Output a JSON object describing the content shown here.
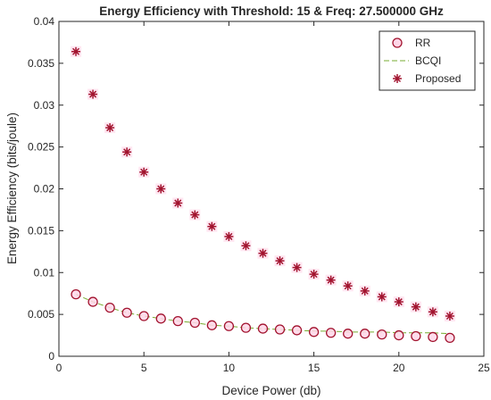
{
  "chart_data": {
    "type": "scatter",
    "title": "Energy Efficiency with Threshold: 15 & Freq: 27.500000 GHz",
    "xlabel": "Device Power (db)",
    "ylabel": "Energy Efficiency (bits/joule)",
    "xlim": [
      0,
      25
    ],
    "ylim": [
      0,
      0.04
    ],
    "xticks": [
      "0",
      "5",
      "10",
      "15",
      "20",
      "25"
    ],
    "yticks": [
      "0",
      "0.005",
      "0.01",
      "0.015",
      "0.02",
      "0.025",
      "0.03",
      "0.035",
      "0.04"
    ],
    "grid": false,
    "legend_position": "top-right",
    "x": [
      1,
      2,
      3,
      4,
      5,
      6,
      7,
      8,
      9,
      10,
      11,
      12,
      13,
      14,
      15,
      16,
      17,
      18,
      19,
      20,
      21,
      22,
      23
    ],
    "series": [
      {
        "name": "RR",
        "marker": "circle",
        "color": "#a2142f",
        "values": [
          0.0074,
          0.0065,
          0.0058,
          0.0052,
          0.0048,
          0.0045,
          0.0042,
          0.004,
          0.0037,
          0.0036,
          0.0034,
          0.0033,
          0.0032,
          0.0031,
          0.0029,
          0.0028,
          0.0027,
          0.0027,
          0.0026,
          0.0025,
          0.0024,
          0.0023,
          0.0022
        ]
      },
      {
        "name": "BCQI",
        "marker": "dash-line",
        "color": "#77ac30",
        "values": [
          0.0074,
          0.0065,
          0.0058,
          0.0052,
          0.0048,
          0.0045,
          0.0042,
          0.004,
          0.0037,
          0.0036,
          0.0034,
          0.0033,
          0.0032,
          0.0031,
          0.003,
          0.003,
          0.0029,
          0.0029,
          0.0029,
          0.0028,
          0.0028,
          0.0028,
          0.0027
        ]
      },
      {
        "name": "Proposed",
        "marker": "asterisk",
        "color": "#a2142f",
        "values": [
          0.0364,
          0.0313,
          0.0273,
          0.0244,
          0.022,
          0.02,
          0.0183,
          0.0169,
          0.0155,
          0.0143,
          0.0132,
          0.0123,
          0.0114,
          0.0106,
          0.0098,
          0.0091,
          0.0084,
          0.0078,
          0.0071,
          0.0065,
          0.0059,
          0.0053,
          0.0048
        ]
      }
    ]
  }
}
